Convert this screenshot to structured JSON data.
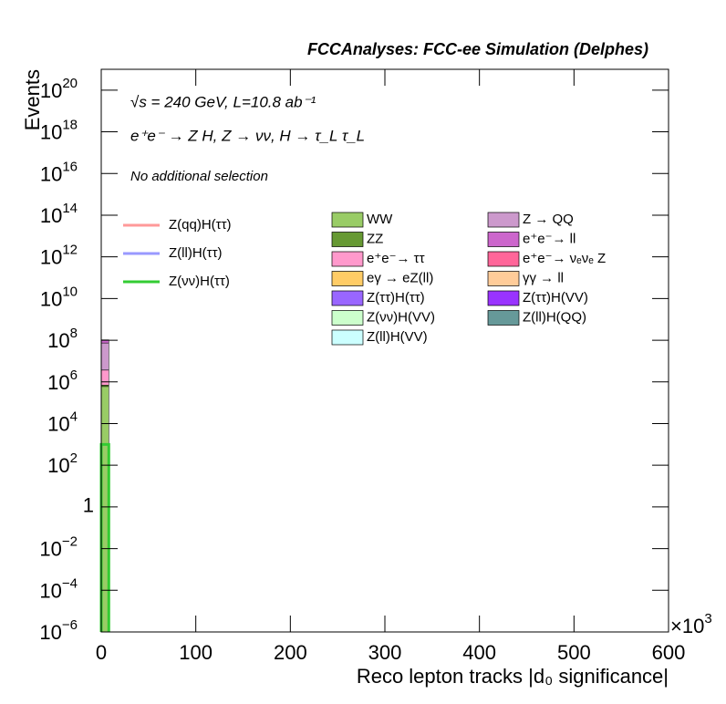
{
  "chart_data": {
    "type": "stacked_histogram",
    "title": "FCCAnalyses: FCC-ee Simulation (Delphes)",
    "annotations": [
      "√s = 240 GeV, L=10.8 ab⁻¹",
      "e⁺e⁻ → Z H, Z → νν, H → τ_L τ_L",
      "No additional selection"
    ],
    "x_label": "Reco lepton tracks |d₀ significance|",
    "y_label": "Events",
    "x_multiplier": {
      "base": "×10",
      "exp": "3"
    },
    "log_y": true,
    "bins": [
      0,
      8
    ],
    "xlim": [
      0,
      600
    ],
    "xticks": [
      0,
      100,
      200,
      300,
      400,
      500,
      600
    ],
    "ylim": [
      1e-06,
      1e+21
    ],
    "yticks": [
      {
        "value": 1e-06,
        "label": "10",
        "exp": "−6"
      },
      {
        "value": 0.0001,
        "label": "10",
        "exp": "−4"
      },
      {
        "value": 0.01,
        "label": "10",
        "exp": "−2"
      },
      1,
      {
        "value": 100,
        "label": "10",
        "exp": "2"
      },
      {
        "value": 10000,
        "label": "10",
        "exp": "4"
      },
      {
        "value": 1000000,
        "label": "10",
        "exp": "6"
      },
      {
        "value": 100000000.0,
        "label": "10",
        "exp": "8"
      },
      {
        "value": 10000000000.0,
        "label": "10",
        "exp": "10"
      },
      {
        "value": 1000000000000.0,
        "label": "10",
        "exp": "12"
      },
      {
        "value": 100000000000000.0,
        "label": "10",
        "exp": "14"
      },
      {
        "value": 1e+16,
        "label": "10",
        "exp": "16"
      },
      {
        "value": 1e+18,
        "label": "10",
        "exp": "18"
      },
      {
        "value": 1e+20,
        "label": "10",
        "exp": "20"
      }
    ],
    "series": [
      {
        "name": "WW",
        "color": "#99cc66",
        "values": [
          600000
        ]
      },
      {
        "name": "ZZ",
        "color": "#669933",
        "values": [
          100000
        ]
      },
      {
        "name": "e⁺e⁻→ ττ",
        "color": "#ff99cc",
        "values": [
          3000000
        ]
      },
      {
        "name": "eγ → eZ(ll)",
        "color": "#ffcc66",
        "values": [
          8000
        ]
      },
      {
        "name": "Z(ττ)H(ττ)",
        "color": "#9966ff",
        "values": [
          20
        ]
      },
      {
        "name": "Z(νν)H(VV)",
        "color": "#ccffcc",
        "values": [
          0.5
        ]
      },
      {
        "name": "Z(ll)H(VV)",
        "color": "#ccffff",
        "values": [
          0.2
        ]
      },
      {
        "name": "Z → QQ",
        "color": "#cc99cc",
        "values": [
          70000000
        ]
      },
      {
        "name": "e⁺e⁻→ ll",
        "color": "#cc66cc",
        "values": [
          30000000
        ]
      },
      {
        "name": "e⁺e⁻→ νₑνₑ Z",
        "color": "#ff6699",
        "values": [
          10000
        ]
      },
      {
        "name": "γγ → ll",
        "color": "#ffcc99",
        "values": [
          3000
        ]
      },
      {
        "name": "Z(ττ)H(VV)",
        "color": "#9933ff",
        "values": [
          4
        ]
      },
      {
        "name": "Z(ll)H(QQ)",
        "color": "#669999",
        "values": [
          0.3
        ]
      }
    ],
    "lines": [
      {
        "name": "Z(qq)H(ττ)",
        "color": "#ff9999",
        "values": [
          null
        ]
      },
      {
        "name": "Z(ll)H(ττ)",
        "color": "#9999ff",
        "values": [
          null
        ]
      },
      {
        "name": "Z(νν)H(ττ)",
        "color": "#33cc33",
        "values": [
          1000
        ]
      }
    ]
  }
}
